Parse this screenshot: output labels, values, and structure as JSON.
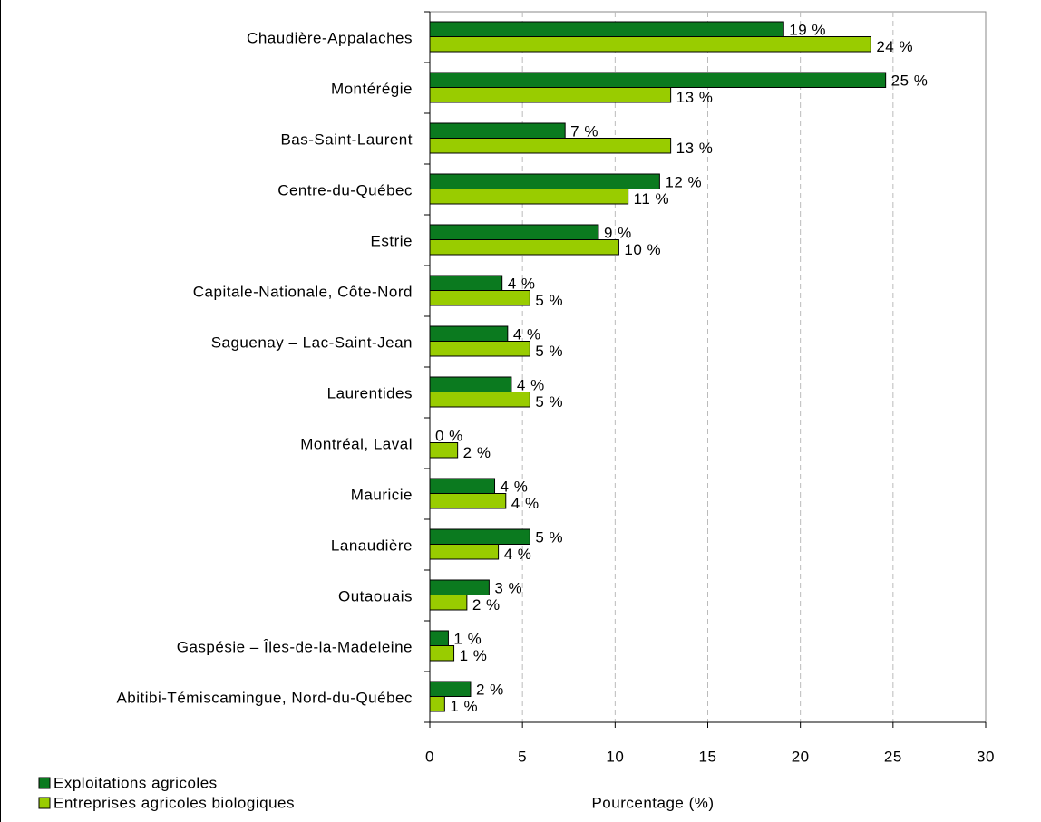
{
  "chart_data": {
    "type": "bar",
    "orientation": "horizontal",
    "categories": [
      "Chaudière-Appalaches",
      "Montérégie",
      "Bas-Saint-Laurent",
      "Centre-du-Québec",
      "Estrie",
      "Capitale-Nationale, Côte-Nord",
      "Saguenay – Lac-Saint-Jean",
      "Laurentides",
      "Montréal, Laval",
      "Mauricie",
      "Lanaudière",
      "Outaouais",
      "Gaspésie – Îles-de-la-Madeleine",
      "Abitibi-Témiscamingue, Nord-du-Québec"
    ],
    "series": [
      {
        "name": "Exploitations agricoles",
        "color": "#0b7a1f",
        "values": [
          19.1,
          24.6,
          7.3,
          12.4,
          9.1,
          3.9,
          4.2,
          4.4,
          0,
          3.5,
          5.4,
          3.2,
          1.0,
          2.2
        ],
        "value_labels": [
          "19 %",
          "25 %",
          "7 %",
          "12 %",
          "9 %",
          "4 %",
          "4 %",
          "4 %",
          "0 %",
          "4 %",
          "5 %",
          "3 %",
          "1 %",
          "2 %"
        ]
      },
      {
        "name": "Entreprises agricoles biologiques",
        "color": "#99cc00",
        "values": [
          23.8,
          13.0,
          13.0,
          10.7,
          10.2,
          5.4,
          5.4,
          5.4,
          1.5,
          4.1,
          3.7,
          2.0,
          1.3,
          0.8
        ],
        "value_labels": [
          "24 %",
          "13 %",
          "13 %",
          "11 %",
          "10 %",
          "5 %",
          "5 %",
          "5 %",
          "2 %",
          "4 %",
          "4 %",
          "2 %",
          "1 %",
          "1 %"
        ]
      }
    ],
    "x_label": "Pourcentage (%)",
    "xlim": [
      0,
      30
    ],
    "xticks": [
      0,
      5,
      10,
      15,
      20,
      25,
      30
    ],
    "grid": true,
    "legend": "bottom-left"
  }
}
